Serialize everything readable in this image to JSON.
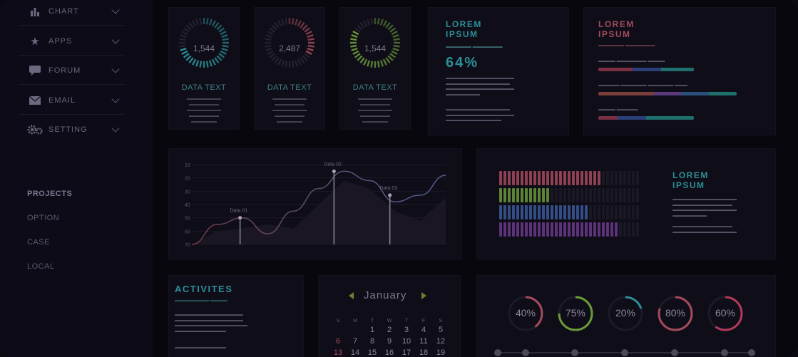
{
  "sidebar": {
    "items": [
      {
        "label": "CHART",
        "icon": "bar-chart-icon"
      },
      {
        "label": "APPS",
        "icon": "star-icon"
      },
      {
        "label": "FORUM",
        "icon": "chat-bubble-icon"
      },
      {
        "label": "EMAIL",
        "icon": "envelope-icon"
      },
      {
        "label": "SETTING",
        "icon": "gears-icon"
      }
    ],
    "projects_heading": "PROJECTS",
    "projects": [
      "OPTION",
      "CASE",
      "LOCAL"
    ]
  },
  "ring_cards": [
    {
      "value": "1,544",
      "label": "DATA TEXT",
      "fill": 0.72,
      "color": "#2c8f98"
    },
    {
      "value": "2,487",
      "label": "DATA TEXT",
      "fill": 0.35,
      "color": "#a34b5d"
    },
    {
      "value": "1,544",
      "label": "DATA TEXT",
      "fill": 0.85,
      "color": "#6a9a3a"
    }
  ],
  "lorem_panel_1": {
    "title_line1": "LOREM",
    "title_line2": "IPSUM",
    "percent": "64%"
  },
  "lorem_panel_2": {
    "title_line1": "LOREM",
    "title_line2": "IPSUM"
  },
  "lorem_panel_3": {
    "title_line1": "LOREM",
    "title_line2": "IPSUM"
  },
  "chart_data": {
    "type": "line",
    "yticks": [
      10,
      20,
      30,
      40,
      50,
      60,
      70
    ],
    "x": [
      0,
      1,
      2,
      3,
      4,
      5,
      6,
      7,
      8,
      9,
      10
    ],
    "series": [
      {
        "values": [
          70,
          55,
          50,
          62,
          45,
          28,
          15,
          22,
          38,
          33,
          18
        ]
      }
    ],
    "annotations": [
      {
        "label": "Data 01",
        "x": 1.9,
        "y": 50
      },
      {
        "label": "Data 02",
        "x": 5.6,
        "y": 15
      },
      {
        "label": "Data 03",
        "x": 7.8,
        "y": 33
      }
    ],
    "ylim": [
      10,
      70
    ]
  },
  "activities": {
    "title": "ACTIVITES"
  },
  "calendar": {
    "month": "January",
    "weekday_headers": [
      "S",
      "M",
      "T",
      "W",
      "T",
      "F",
      "S"
    ],
    "rows": [
      [
        "",
        "",
        "1",
        "2",
        "3",
        "4",
        "5"
      ],
      [
        "6",
        "7",
        "8",
        "9",
        "10",
        "11",
        "12"
      ],
      [
        "13",
        "14",
        "15",
        "16",
        "17",
        "18",
        "19"
      ]
    ]
  },
  "percent_rings": [
    {
      "label": "40%",
      "value": 0.4,
      "color": "#a34b5d"
    },
    {
      "label": "75%",
      "value": 0.75,
      "color": "#6a9a3a"
    },
    {
      "label": "20%",
      "value": 0.2,
      "color": "#2c8f98"
    },
    {
      "label": "80%",
      "value": 0.8,
      "color": "#a34b5d"
    },
    {
      "label": "60%",
      "value": 0.6,
      "color": "#b03a5a"
    }
  ],
  "colors": {
    "teal": "#2c8f98",
    "red": "#a34b5d",
    "green": "#6a9a3a",
    "blue": "#3a5a9a",
    "purple": "#6a3a8a"
  }
}
